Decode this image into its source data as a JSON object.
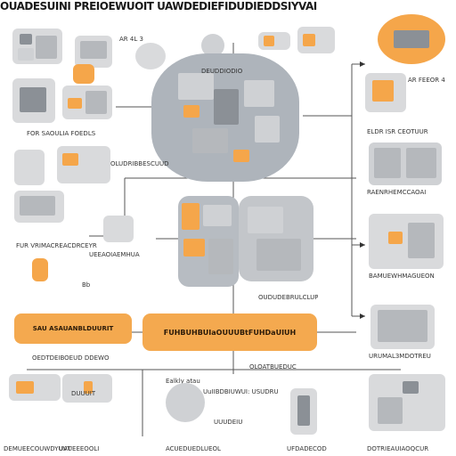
{
  "title": "OUADESUINI PREIOEWUOIT UAWDEDIEFIDUDIEDDSIYVAI",
  "center_label": "FUHBUHBUIaOUUUBtFUHDaUIUH",
  "left_label": "SAU ASAUANBLDUURIT",
  "captions": {
    "c1": "AR 4L 3",
    "c2": "AR FEEOR 4",
    "c3": "ELDR ISR CEOTUUR",
    "c4": "RAENRHEMCCAOAI",
    "c5": "BAMUEWHMAGUEON",
    "c6": "URUMAL3MDOTREU",
    "c7": "FOR SAOULIA FOEDLS",
    "c8": "FUR VRIMACREACDRCEYR",
    "c9": "UEEAOIAEMHUA",
    "c10": "OEDTDEIBOEUD DDEWO",
    "c11": "DEMUEECOUWDYUVT",
    "c12": "UAUEEEOOLI",
    "c13": "ACUEDUEDLUEOL",
    "c14": "UFDADECOD",
    "c15": "DOTRIEAUIAOQCUR",
    "c16": "OLOATBUEDUC",
    "c17": "OLUDRIBBESCUUD",
    "c18": "OUDUDEBRULCLUP",
    "c19": "Ealkly atau",
    "c20": "UuIIBDBIUWUI: USUDRU",
    "c21": "UUUDEIU",
    "c22": "DUUUIT",
    "c23": "DEUDDIODIO",
    "c24": "Bb"
  }
}
